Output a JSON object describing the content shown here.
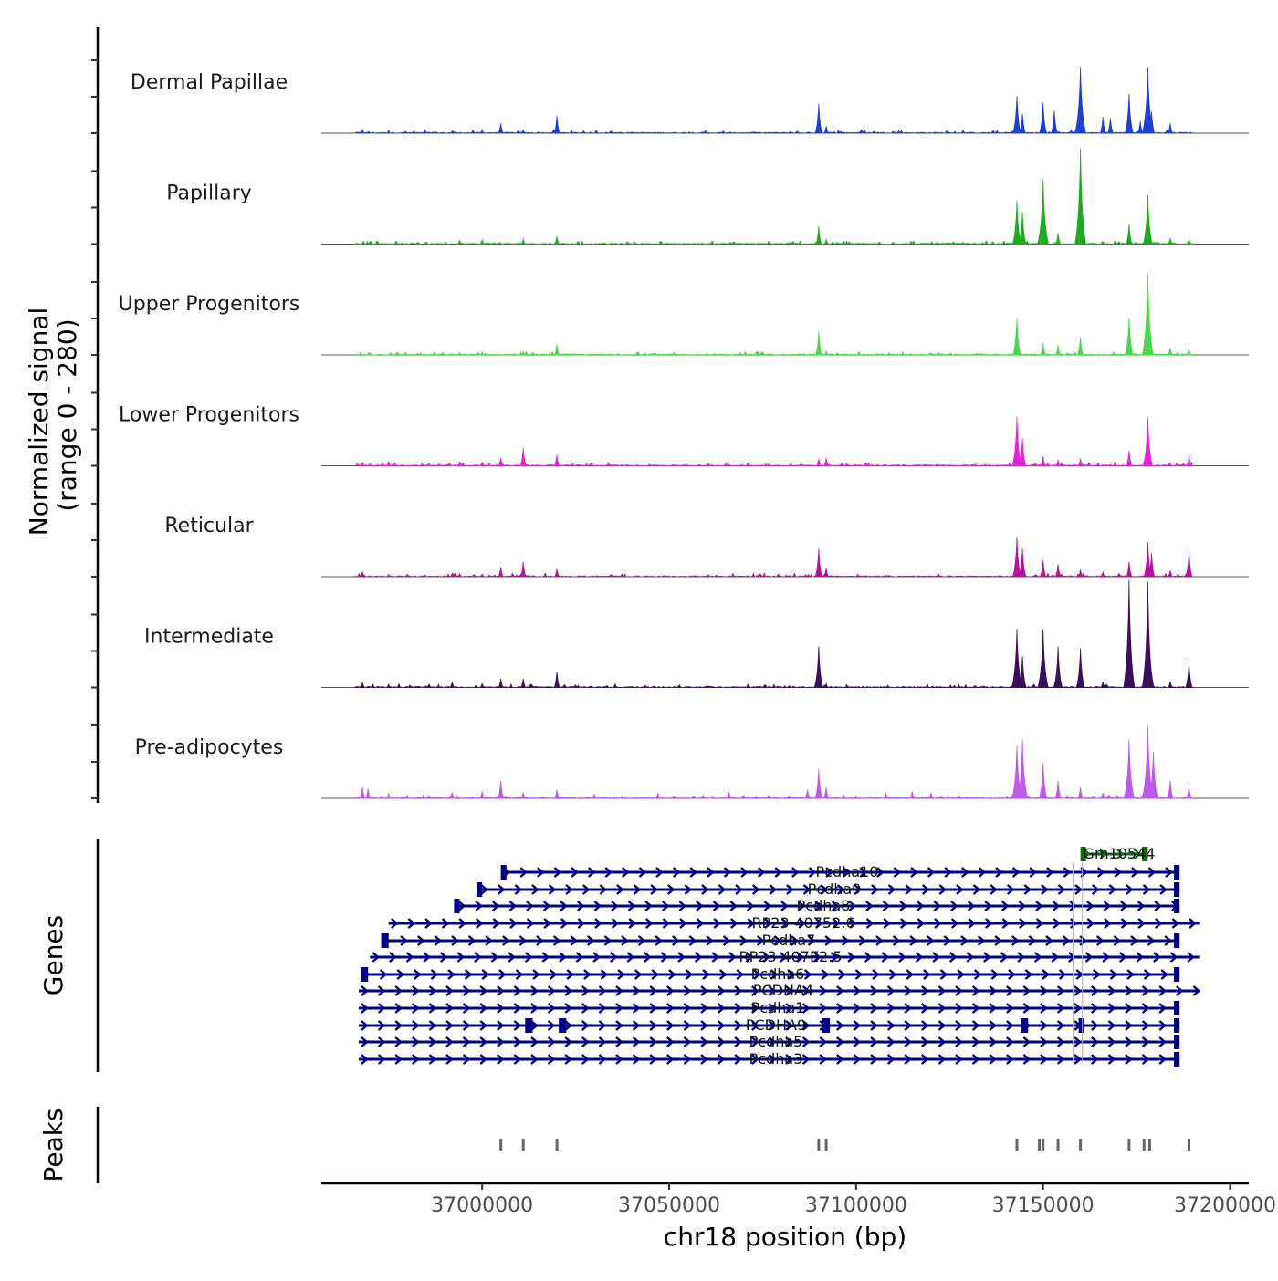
{
  "chart_data": {
    "type": "coverage-tracks",
    "chromosome": "chr18",
    "xlabel": "chr18 position (bp)",
    "ylabel_line1": "Normalized signal",
    "ylabel_line2": "(range 0 - 280)",
    "xlim": [
      36957000,
      37205000
    ],
    "ylim": [
      0,
      280
    ],
    "x_ticks": [
      37000000,
      37050000,
      37100000,
      37150000,
      37200000
    ],
    "x_tick_labels": [
      "37000000",
      "37050000",
      "37100000",
      "37150000",
      "37200000"
    ],
    "series": [
      {
        "name": "Dermal Papillae",
        "color": "#1f3fd1",
        "peaks": [
          [
            36968000,
            9
          ],
          [
            36975000,
            7
          ],
          [
            36992000,
            6
          ],
          [
            37000000,
            9
          ],
          [
            37005000,
            25
          ],
          [
            37011000,
            8
          ],
          [
            37020000,
            45
          ],
          [
            37090000,
            75
          ],
          [
            37092000,
            18
          ],
          [
            37143000,
            95
          ],
          [
            37144500,
            50
          ],
          [
            37150000,
            78
          ],
          [
            37153000,
            58
          ],
          [
            37160000,
            170
          ],
          [
            37166000,
            42
          ],
          [
            37168000,
            38
          ],
          [
            37173000,
            100
          ],
          [
            37176000,
            30
          ],
          [
            37178000,
            170
          ],
          [
            37179000,
            55
          ],
          [
            37184000,
            25
          ]
        ]
      },
      {
        "name": "Papillary",
        "color": "#1faa1f",
        "peaks": [
          [
            36970000,
            7
          ],
          [
            36977000,
            8
          ],
          [
            36994000,
            10
          ],
          [
            37000000,
            11
          ],
          [
            37011000,
            12
          ],
          [
            37020000,
            20
          ],
          [
            37090000,
            45
          ],
          [
            37092000,
            12
          ],
          [
            37143000,
            110
          ],
          [
            37144500,
            80
          ],
          [
            37150000,
            165
          ],
          [
            37154000,
            28
          ],
          [
            37160000,
            245
          ],
          [
            37173000,
            50
          ],
          [
            37178000,
            125
          ],
          [
            37184000,
            15
          ],
          [
            37189000,
            12
          ]
        ]
      },
      {
        "name": "Upper Progenitors",
        "color": "#4cd64c",
        "peaks": [
          [
            36970000,
            5
          ],
          [
            36994000,
            6
          ],
          [
            37000000,
            7
          ],
          [
            37011000,
            9
          ],
          [
            37020000,
            28
          ],
          [
            37090000,
            60
          ],
          [
            37092000,
            10
          ],
          [
            37143000,
            95
          ],
          [
            37150000,
            30
          ],
          [
            37154000,
            25
          ],
          [
            37160000,
            45
          ],
          [
            37173000,
            95
          ],
          [
            37178000,
            210
          ],
          [
            37184000,
            18
          ],
          [
            37189000,
            15
          ]
        ]
      },
      {
        "name": "Lower Progenitors",
        "color": "#e622d6",
        "peaks": [
          [
            36968000,
            8
          ],
          [
            36975000,
            11
          ],
          [
            36994000,
            10
          ],
          [
            37000000,
            9
          ],
          [
            37005000,
            20
          ],
          [
            37011000,
            45
          ],
          [
            37020000,
            28
          ],
          [
            37090000,
            18
          ],
          [
            37092000,
            20
          ],
          [
            37143000,
            125
          ],
          [
            37144500,
            70
          ],
          [
            37150000,
            25
          ],
          [
            37154000,
            15
          ],
          [
            37160000,
            18
          ],
          [
            37173000,
            38
          ],
          [
            37178000,
            125
          ],
          [
            37189000,
            25
          ]
        ]
      },
      {
        "name": "Reticular",
        "color": "#b3129c",
        "peaks": [
          [
            36968000,
            12
          ],
          [
            36975000,
            6
          ],
          [
            36994000,
            8
          ],
          [
            37000000,
            7
          ],
          [
            37005000,
            25
          ],
          [
            37011000,
            38
          ],
          [
            37020000,
            20
          ],
          [
            37090000,
            72
          ],
          [
            37092000,
            22
          ],
          [
            37143000,
            100
          ],
          [
            37144500,
            72
          ],
          [
            37150000,
            42
          ],
          [
            37154000,
            32
          ],
          [
            37160000,
            18
          ],
          [
            37166000,
            12
          ],
          [
            37173000,
            38
          ],
          [
            37178000,
            88
          ],
          [
            37179000,
            60
          ],
          [
            37184000,
            16
          ],
          [
            37189000,
            62
          ]
        ]
      },
      {
        "name": "Intermediate",
        "color": "#3b0f5c",
        "peaks": [
          [
            36968000,
            12
          ],
          [
            36975000,
            8
          ],
          [
            36992000,
            14
          ],
          [
            37000000,
            10
          ],
          [
            37005000,
            22
          ],
          [
            37011000,
            22
          ],
          [
            37020000,
            40
          ],
          [
            37090000,
            105
          ],
          [
            37092000,
            10
          ],
          [
            37143000,
            150
          ],
          [
            37144500,
            80
          ],
          [
            37150000,
            150
          ],
          [
            37154000,
            105
          ],
          [
            37160000,
            100
          ],
          [
            37166000,
            15
          ],
          [
            37173000,
            275
          ],
          [
            37178000,
            270
          ],
          [
            37179000,
            40
          ],
          [
            37184000,
            15
          ],
          [
            37189000,
            62
          ]
        ]
      },
      {
        "name": "Pre-adipocytes",
        "color": "#bf5ae8",
        "peaks": [
          [
            36968000,
            28
          ],
          [
            36969500,
            25
          ],
          [
            36975000,
            12
          ],
          [
            36992000,
            15
          ],
          [
            37000000,
            18
          ],
          [
            37005000,
            45
          ],
          [
            37011000,
            15
          ],
          [
            37020000,
            22
          ],
          [
            37030000,
            10
          ],
          [
            37047000,
            14
          ],
          [
            37066000,
            16
          ],
          [
            37087000,
            22
          ],
          [
            37090000,
            75
          ],
          [
            37092000,
            28
          ],
          [
            37108000,
            12
          ],
          [
            37115000,
            18
          ],
          [
            37120000,
            14
          ],
          [
            37143000,
            135
          ],
          [
            37144500,
            150
          ],
          [
            37150000,
            90
          ],
          [
            37154000,
            45
          ],
          [
            37160000,
            28
          ],
          [
            37166000,
            14
          ],
          [
            37173000,
            150
          ],
          [
            37178000,
            185
          ],
          [
            37179500,
            120
          ],
          [
            37184000,
            45
          ],
          [
            37189000,
            30
          ]
        ]
      }
    ],
    "genes": [
      {
        "name": "Gm10544",
        "strand": "+",
        "start": 37160000,
        "end": 37178000,
        "exons": [
          [
            37160000,
            37161000
          ],
          [
            37176500,
            37178000
          ]
        ],
        "color": "#0f6b12"
      },
      {
        "name": "Pcdha10",
        "strand": "+",
        "start": 37005000,
        "end": 37186500,
        "exons": [
          [
            37005000,
            37006500
          ],
          [
            37185000,
            37186500
          ]
        ],
        "color": "#000080"
      },
      {
        "name": "Pcdha9",
        "strand": "+",
        "start": 36999000,
        "end": 37186500,
        "exons": [
          [
            36998500,
            37000000
          ],
          [
            37185000,
            37186500
          ]
        ],
        "color": "#000080"
      },
      {
        "name": "Pcdha8",
        "strand": "+",
        "start": 36993000,
        "end": 37186500,
        "exons": [
          [
            36992500,
            36994000
          ],
          [
            37185000,
            37186500
          ]
        ],
        "color": "#000080"
      },
      {
        "name": "RP23-40752.6",
        "strand": "+",
        "start": 36975000,
        "end": 37192000,
        "exons": [],
        "color": "#000080"
      },
      {
        "name": "Pcdha7",
        "strand": "+",
        "start": 36973000,
        "end": 37186500,
        "exons": [
          [
            36973000,
            36975000
          ],
          [
            37185000,
            37186500
          ]
        ],
        "color": "#000080"
      },
      {
        "name": "RP23-407E2.5",
        "strand": "+",
        "start": 36970000,
        "end": 37192000,
        "exons": [],
        "color": "#000080"
      },
      {
        "name": "Pcdha6",
        "strand": "+",
        "start": 36967500,
        "end": 37186500,
        "exons": [
          [
            36967500,
            36969500
          ],
          [
            37185000,
            37186500
          ]
        ],
        "color": "#000080"
      },
      {
        "name": "PCDHA4",
        "strand": "+",
        "start": 36967000,
        "end": 37192000,
        "exons": [],
        "color": "#000080"
      },
      {
        "name": "Pcdha1",
        "strand": "+",
        "start": 36967000,
        "end": 37186500,
        "exons": [
          [
            37185000,
            37186500
          ]
        ],
        "color": "#000080"
      },
      {
        "name": "PCDHA9",
        "strand": "+",
        "start": 36967000,
        "end": 37186500,
        "exons": [
          [
            37011500,
            37013500
          ],
          [
            37020500,
            37022500
          ],
          [
            37091000,
            37093000
          ],
          [
            37144000,
            37146000
          ],
          [
            37159500,
            37160500
          ],
          [
            37185000,
            37186500
          ]
        ],
        "color": "#000080"
      },
      {
        "name": "Pcdha5",
        "strand": "+",
        "start": 36967000,
        "end": 37186500,
        "exons": [
          [
            37185000,
            37186500
          ]
        ],
        "color": "#000080"
      },
      {
        "name": "Pcdha3",
        "strand": "+",
        "start": 36967000,
        "end": 37186500,
        "exons": [
          [
            37185000,
            37186500
          ]
        ],
        "color": "#000080"
      }
    ],
    "peaks": [
      37005000,
      37011000,
      37020000,
      37090000,
      37092000,
      37143000,
      37149000,
      37150000,
      37154000,
      37160000,
      37173000,
      37177000,
      37178500,
      37189000
    ],
    "panel_labels": {
      "genes": "Genes",
      "peaks": "Peaks"
    }
  }
}
